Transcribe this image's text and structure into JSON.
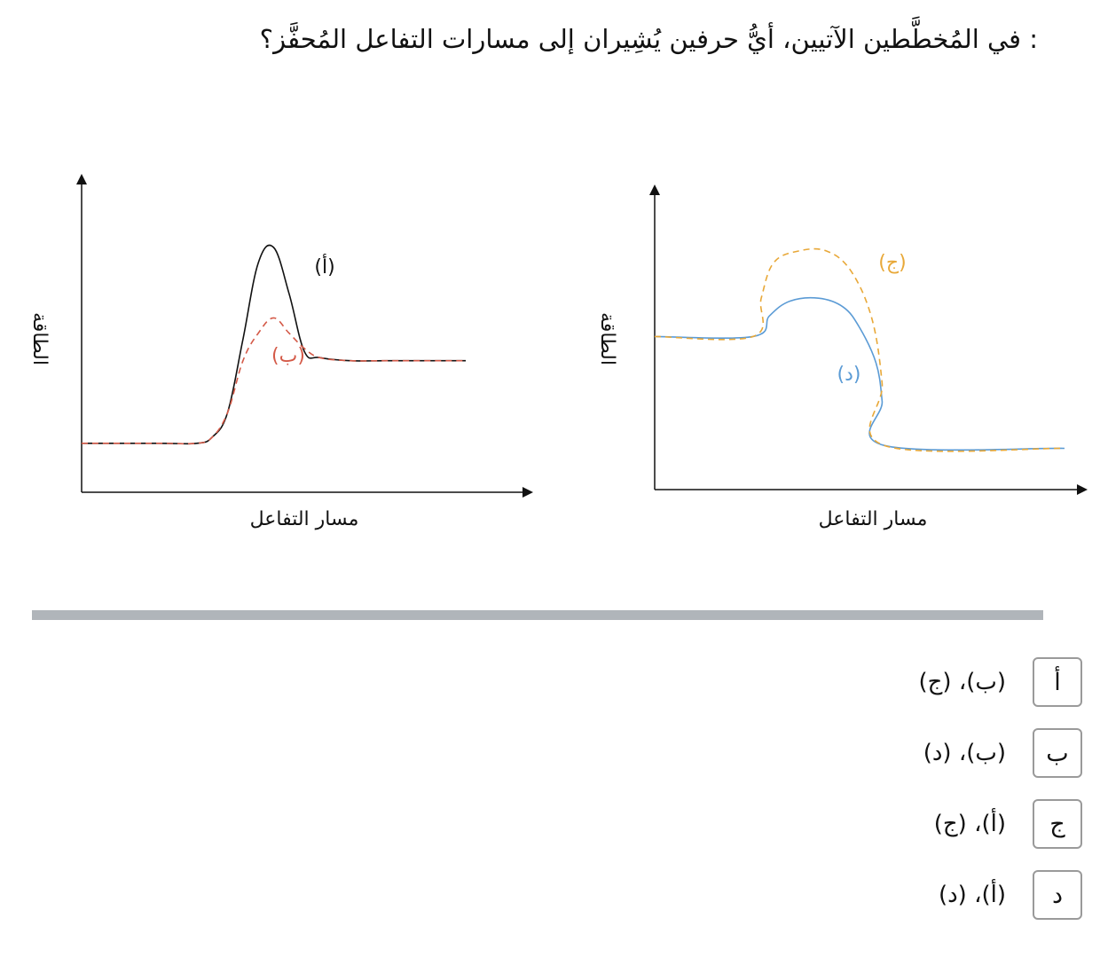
{
  "question": {
    "text": ": في المُخطَّطين الآتيين، أيُّ حرفين يُشِيران إلى مسارات التفاعل المُحفَّز؟"
  },
  "chart_data": [
    {
      "type": "line",
      "title": "",
      "xlabel": "مسار التفاعل",
      "ylabel": "الطاقة",
      "xlim": [
        0,
        100
      ],
      "ylim": [
        0,
        100
      ],
      "grid": false,
      "series": [
        {
          "name": "(أ)",
          "style": "solid",
          "color": "#111111",
          "x": [
            0,
            20,
            30,
            34,
            38,
            42,
            46,
            50,
            54,
            58,
            62,
            70,
            80,
            100
          ],
          "y": [
            16,
            16,
            16,
            18,
            26,
            50,
            75,
            80,
            65,
            46,
            44,
            43,
            43,
            43
          ]
        },
        {
          "name": "(ب)",
          "style": "dashed",
          "color": "#d45a48",
          "x": [
            0,
            20,
            30,
            34,
            38,
            42,
            46,
            50,
            54,
            58,
            62,
            70,
            80,
            100
          ],
          "y": [
            16,
            16,
            16,
            18,
            26,
            43,
            52,
            57,
            52,
            47,
            44,
            43,
            43,
            43
          ]
        }
      ]
    },
    {
      "type": "line",
      "title": "",
      "xlabel": "مسار التفاعل",
      "ylabel": "الطاقة",
      "xlim": [
        0,
        100
      ],
      "ylim": [
        0,
        100
      ],
      "grid": false,
      "series": [
        {
          "name": "(د)",
          "style": "solid",
          "color": "#5b9bd5",
          "x": [
            0,
            24,
            28,
            33,
            40,
            46,
            50,
            54,
            55.5,
            56,
            100
          ],
          "y": [
            52,
            52,
            59,
            64,
            65,
            62,
            55,
            43,
            30,
            15,
            14
          ]
        },
        {
          "name": "(ج)",
          "style": "dashed",
          "color": "#e8a838",
          "x": [
            0,
            24,
            26,
            29,
            35,
            42,
            48,
            53,
            55.5,
            56,
            100
          ],
          "y": [
            52,
            52,
            65,
            77,
            81,
            81,
            74,
            58,
            36,
            15,
            14
          ]
        }
      ]
    }
  ],
  "options": [
    {
      "key": "أ",
      "text": "(ب)، (ج)"
    },
    {
      "key": "ب",
      "text": "(ب)، (د)"
    },
    {
      "key": "ج",
      "text": "(أ)، (ج)"
    },
    {
      "key": "د",
      "text": "(أ)، (د)"
    }
  ]
}
